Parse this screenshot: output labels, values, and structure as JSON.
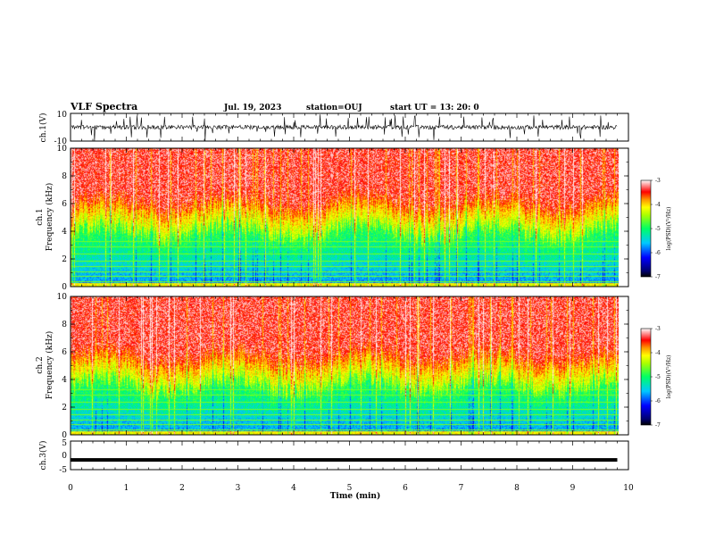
{
  "header": {
    "title": "VLF Spectra",
    "date": "Jul. 19, 2023",
    "station": "station=OUJ",
    "start": "start UT =  13: 20: 0"
  },
  "chart_data": [
    {
      "name": "ch1-waveform",
      "type": "line",
      "ylabel": "ch.1(V)",
      "ylim": [
        -10,
        10
      ],
      "yticks": [
        "10",
        "-10"
      ],
      "xlim": [
        0,
        10
      ],
      "approx_level": 0
    },
    {
      "name": "ch1-spectrogram",
      "type": "heatmap",
      "ylabel_1": "ch.1",
      "ylabel_2": "Frequency (kHz)",
      "ylim": [
        0,
        10
      ],
      "yticks": [
        "0",
        "2",
        "4",
        "6",
        "8",
        "10"
      ],
      "xlim": [
        0,
        9.8
      ],
      "colorbar": {
        "label": "log(PSD)(V²/Hz)",
        "range": [
          -7,
          -3
        ],
        "ticks": [
          "-3",
          "-4",
          "-5",
          "-6",
          "-7"
        ]
      }
    },
    {
      "name": "ch2-spectrogram",
      "type": "heatmap",
      "ylabel_1": "ch.2",
      "ylabel_2": "Frequency (kHz)",
      "ylim": [
        0,
        10
      ],
      "yticks": [
        "0",
        "2",
        "4",
        "6",
        "8",
        "10"
      ],
      "xlim": [
        0,
        9.8
      ],
      "colorbar": {
        "label": "log(PSD)(V²/Hz)",
        "range": [
          -7,
          -3
        ],
        "ticks": [
          "-3",
          "-4",
          "-5",
          "-6",
          "-7"
        ]
      }
    },
    {
      "name": "ch3-waveform",
      "type": "line",
      "ylabel": "ch.3(V)",
      "ylim": [
        -5,
        5
      ],
      "yticks": [
        "5",
        "0",
        "-5"
      ],
      "xlim": [
        0,
        10
      ],
      "approx_level": -1.6
    }
  ],
  "xaxis": {
    "label": "Time (min)",
    "ticks": [
      "0",
      "1",
      "2",
      "3",
      "4",
      "5",
      "6",
      "7",
      "8",
      "9",
      "10"
    ]
  }
}
